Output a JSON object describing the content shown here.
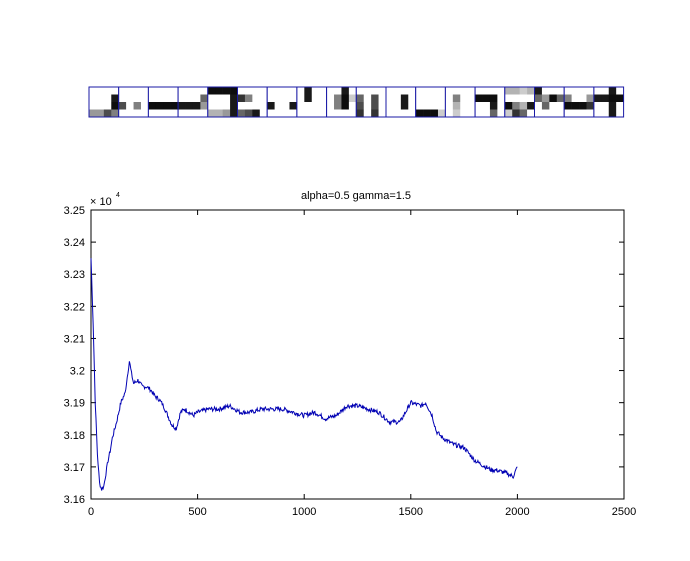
{
  "figure": {
    "patch_strip": {
      "rows": 4,
      "cols": 4,
      "patches": [
        [
          0,
          0,
          0,
          0,
          0,
          0,
          0,
          0.9,
          0,
          0,
          0,
          0.95,
          0.4,
          0.4,
          0.7,
          0.5
        ],
        [
          0,
          0,
          0,
          0,
          0,
          0,
          0,
          0,
          0.7,
          0,
          0.5,
          0,
          0,
          0,
          0,
          0
        ],
        [
          0,
          0,
          0,
          0,
          0,
          0,
          0,
          0,
          0.95,
          0.95,
          0.95,
          0.95,
          0,
          0,
          0,
          0
        ],
        [
          0,
          0,
          0,
          0,
          0,
          0,
          0,
          0.6,
          0.9,
          0.9,
          0.9,
          0.4,
          0,
          0,
          0,
          0
        ],
        [
          0.95,
          0.95,
          0.95,
          0.95,
          0,
          0,
          0,
          0.9,
          0,
          0,
          0,
          0.9,
          0.3,
          0.3,
          0.4,
          0.9
        ],
        [
          0,
          0,
          0,
          0,
          0.8,
          0.5,
          0,
          0,
          0,
          0,
          0,
          0,
          0.6,
          0.7,
          0.9,
          0
        ],
        [
          0,
          0,
          0,
          0,
          0,
          0,
          0,
          0,
          0.9,
          0,
          0,
          0.9,
          0,
          0,
          0,
          0
        ],
        [
          0,
          0.9,
          0,
          0,
          0,
          0.9,
          0,
          0,
          0,
          0,
          0,
          0,
          0,
          0,
          0,
          0
        ],
        [
          0,
          0,
          0.9,
          0,
          0,
          0.5,
          0.95,
          0.2,
          0,
          0.5,
          0.95,
          0,
          0,
          0,
          0,
          0
        ],
        [
          0,
          0,
          0,
          0,
          0.6,
          0,
          0.7,
          0,
          0.7,
          0,
          0.7,
          0,
          0.8,
          0,
          0.8,
          0
        ],
        [
          0,
          0,
          0,
          0,
          0,
          0,
          0.9,
          0,
          0,
          0,
          0.9,
          0,
          0,
          0,
          0,
          0
        ],
        [
          0,
          0,
          0,
          0,
          0,
          0,
          0,
          0,
          0,
          0,
          0,
          0,
          0.95,
          0.95,
          0.95,
          0.2
        ],
        [
          0,
          0,
          0,
          0,
          0,
          0.5,
          0,
          0,
          0,
          0.3,
          0,
          0,
          0,
          0.2,
          0,
          0
        ],
        [
          0,
          0,
          0,
          0,
          0.95,
          0.95,
          0.95,
          0,
          0,
          0,
          0.9,
          0,
          0,
          0,
          0.6,
          0
        ],
        [
          0.3,
          0.3,
          0.2,
          0.3,
          0,
          0,
          0,
          0,
          0.95,
          0.5,
          0.3,
          0.9,
          0.2,
          0.8,
          0.6,
          0
        ],
        [
          0.9,
          0,
          0,
          0,
          0.6,
          0.4,
          0.95,
          0.6,
          0,
          0.6,
          0,
          0,
          0,
          0,
          0,
          0
        ],
        [
          0,
          0,
          0,
          0,
          0.5,
          0,
          0,
          0.4,
          0.95,
          0.95,
          0.95,
          0.8,
          0,
          0,
          0,
          0
        ],
        [
          0,
          0,
          0.9,
          0,
          0.9,
          0.9,
          0.95,
          0.95,
          0,
          0,
          0.9,
          0,
          0,
          0,
          0.9,
          0
        ]
      ]
    },
    "axes": {
      "title": "alpha=0.5  gamma=1.5",
      "exponent_label": "× 10",
      "exponent_power": "4",
      "x_ticks": [
        "0",
        "500",
        "1000",
        "1500",
        "2000",
        "2500"
      ],
      "y_ticks": [
        "3.16",
        "3.17",
        "3.18",
        "3.19",
        "3.2",
        "3.21",
        "3.22",
        "3.23",
        "3.24",
        "3.25"
      ]
    }
  },
  "chart_data": {
    "type": "line",
    "title": "alpha=0.5  gamma=1.5",
    "xlabel": "",
    "ylabel": "",
    "xlim": [
      0,
      2500
    ],
    "ylim": [
      31600,
      32500
    ],
    "y_multiplier": "× 10^4",
    "grid": false,
    "series": [
      {
        "color": "#0000b3",
        "x": [
          0,
          10,
          20,
          30,
          40,
          50,
          60,
          70,
          80,
          90,
          100,
          120,
          140,
          160,
          170,
          180,
          190,
          200,
          220,
          240,
          260,
          280,
          300,
          320,
          340,
          360,
          380,
          400,
          420,
          440,
          460,
          480,
          500,
          550,
          600,
          650,
          700,
          750,
          800,
          850,
          900,
          950,
          1000,
          1050,
          1100,
          1150,
          1200,
          1250,
          1300,
          1350,
          1400,
          1450,
          1500,
          1550,
          1570,
          1600,
          1620,
          1650,
          1700,
          1750,
          1800,
          1850,
          1880,
          1900,
          1950,
          1980,
          2000
        ],
        "y": [
          32350,
          32150,
          31900,
          31740,
          31650,
          31630,
          31640,
          31680,
          31720,
          31750,
          31790,
          31840,
          31900,
          31930,
          31980,
          32030,
          31990,
          31960,
          31970,
          31950,
          31950,
          31940,
          31920,
          31910,
          31890,
          31860,
          31830,
          31820,
          31870,
          31880,
          31870,
          31860,
          31870,
          31880,
          31880,
          31890,
          31870,
          31870,
          31880,
          31880,
          31880,
          31870,
          31860,
          31870,
          31850,
          31860,
          31890,
          31890,
          31880,
          31870,
          31840,
          31840,
          31900,
          31890,
          31900,
          31860,
          31810,
          31790,
          31770,
          31760,
          31720,
          31700,
          31690,
          31690,
          31680,
          31670,
          31700
        ]
      }
    ]
  }
}
